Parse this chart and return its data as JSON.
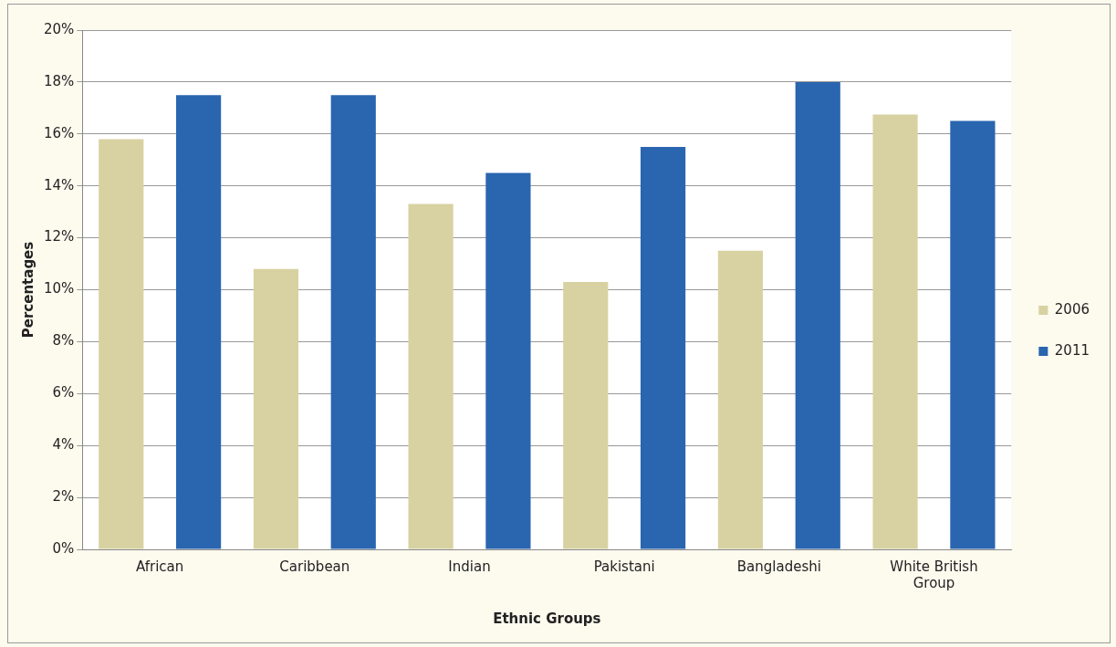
{
  "chart_data": {
    "type": "bar",
    "xlabel": "Ethnic Groups",
    "ylabel": "Percentages",
    "categories": [
      "African",
      "Caribbean",
      "Indian",
      "Pakistani",
      "Bangladeshi",
      "White British Group"
    ],
    "series": [
      {
        "name": "2006",
        "color": "#d8d2a2",
        "values": [
          15.8,
          10.8,
          13.3,
          10.3,
          11.5,
          16.75
        ]
      },
      {
        "name": "2011",
        "color": "#2a65b0",
        "values": [
          17.5,
          17.5,
          14.5,
          15.5,
          18,
          16.5
        ]
      }
    ],
    "ylim": [
      0,
      20
    ],
    "yticks": [
      {
        "value": 0,
        "label": "0%"
      },
      {
        "value": 2,
        "label": "2%"
      },
      {
        "value": 4,
        "label": "4%"
      },
      {
        "value": 6,
        "label": "6%"
      },
      {
        "value": 8,
        "label": "8%"
      },
      {
        "value": 10,
        "label": "10%"
      },
      {
        "value": 12,
        "label": "12%"
      },
      {
        "value": 14,
        "label": "14%"
      },
      {
        "value": 16,
        "label": "16%"
      },
      {
        "value": 18,
        "label": "18%"
      },
      {
        "value": 20,
        "label": "20%"
      }
    ],
    "grid": "y",
    "legend": "right"
  }
}
